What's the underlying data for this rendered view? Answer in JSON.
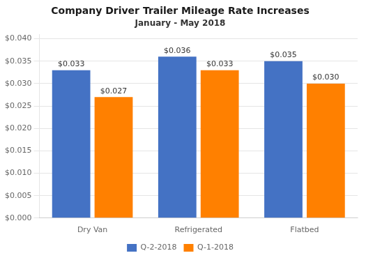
{
  "chart_data": {
    "type": "bar",
    "title": "Company Driver Trailer Mileage Rate Increases",
    "subtitle": "January - May 2018",
    "categories": [
      "Dry Van",
      "Refrigerated",
      "Flatbed"
    ],
    "series": [
      {
        "name": "Q-2-2018",
        "color": "#4472C4",
        "values": [
          0.033,
          0.036,
          0.035
        ],
        "value_labels": [
          "$0.033",
          "$0.036",
          "$0.035"
        ]
      },
      {
        "name": "Q-1-2018",
        "color": "#FF8000",
        "values": [
          0.027,
          0.033,
          0.03
        ],
        "value_labels": [
          "$0.027",
          "$0.033",
          "$0.030"
        ]
      }
    ],
    "ylim": [
      0,
      0.041
    ],
    "yticks": [
      {
        "value": 0.0,
        "label": "$0.000"
      },
      {
        "value": 0.005,
        "label": "$0.005"
      },
      {
        "value": 0.01,
        "label": "$0.010"
      },
      {
        "value": 0.015,
        "label": "$0.015"
      },
      {
        "value": 0.02,
        "label": "$0.020"
      },
      {
        "value": 0.025,
        "label": "$0.025"
      },
      {
        "value": 0.03,
        "label": "$0.030"
      },
      {
        "value": 0.035,
        "label": "$0.035"
      },
      {
        "value": 0.04,
        "label": "$0.040"
      }
    ],
    "grid": true,
    "legend": "bottom",
    "data_labels": true
  }
}
